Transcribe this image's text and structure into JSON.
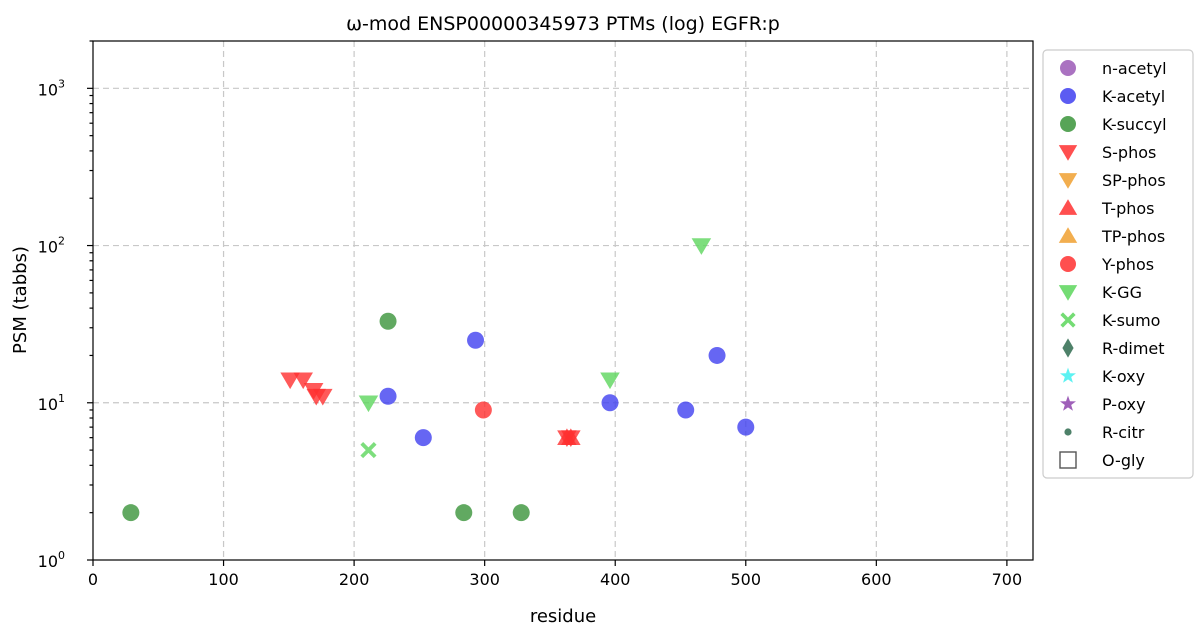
{
  "chart_data": {
    "type": "scatter",
    "title": "ω-mod ENSP00000345973 PTMs (log) EGFR:p",
    "xlabel": "residue",
    "ylabel": "PSM (tabbs)",
    "xlim": [
      0,
      720
    ],
    "ylim": [
      1,
      2000
    ],
    "yscale": "log",
    "grid": true,
    "legend_position": "outside-right",
    "x_ticks": [
      {
        "value": 0,
        "label": "0"
      },
      {
        "value": 100,
        "label": "100"
      },
      {
        "value": 200,
        "label": "200"
      },
      {
        "value": 300,
        "label": "300"
      },
      {
        "value": 400,
        "label": "400"
      },
      {
        "value": 500,
        "label": "500"
      },
      {
        "value": 600,
        "label": "600"
      },
      {
        "value": 700,
        "label": "700"
      }
    ],
    "y_ticks": [
      {
        "value": 1,
        "base": "10",
        "exp": "0"
      },
      {
        "value": 10,
        "base": "10",
        "exp": "1"
      },
      {
        "value": 100,
        "base": "10",
        "exp": "2"
      },
      {
        "value": 1000,
        "base": "10",
        "exp": "3"
      }
    ],
    "series": [
      {
        "name": "n-acetyl",
        "marker": "circle",
        "color": "#9b59b6",
        "points": []
      },
      {
        "name": "K-acetyl",
        "marker": "circle",
        "color": "#4040f0",
        "points": [
          [
            226,
            11
          ],
          [
            253,
            6
          ],
          [
            293,
            25
          ],
          [
            396,
            10
          ],
          [
            454,
            9
          ],
          [
            478,
            20
          ],
          [
            500,
            7
          ]
        ]
      },
      {
        "name": "K-succyl",
        "marker": "circle",
        "color": "#3a943a",
        "points": [
          [
            29,
            2
          ],
          [
            226,
            33
          ],
          [
            284,
            2
          ],
          [
            328,
            2
          ]
        ]
      },
      {
        "name": "S-phos",
        "marker": "triangle-down",
        "color": "#ff3030",
        "points": [
          [
            151,
            14
          ],
          [
            161,
            14
          ],
          [
            169,
            12
          ],
          [
            171,
            11
          ],
          [
            176,
            11
          ],
          [
            363,
            6
          ],
          [
            366,
            6
          ]
        ]
      },
      {
        "name": "SP-phos",
        "marker": "triangle-down",
        "color": "#f0a030",
        "points": []
      },
      {
        "name": "T-phos",
        "marker": "triangle-up",
        "color": "#ff3030",
        "points": [
          [
            363,
            6
          ],
          [
            366,
            6
          ]
        ]
      },
      {
        "name": "TP-phos",
        "marker": "triangle-up",
        "color": "#f0a030",
        "points": []
      },
      {
        "name": "Y-phos",
        "marker": "circle",
        "color": "#ff3030",
        "points": [
          [
            299,
            9
          ]
        ]
      },
      {
        "name": "K-GG",
        "marker": "triangle-down",
        "color": "#5cd65c",
        "points": [
          [
            211,
            10
          ],
          [
            396,
            14
          ],
          [
            466,
            100
          ]
        ]
      },
      {
        "name": "K-sumo",
        "marker": "x",
        "color": "#5cd65c",
        "points": [
          [
            211,
            5
          ]
        ]
      },
      {
        "name": "R-dimet",
        "marker": "diamond",
        "color": "#2f6b4f",
        "points": []
      },
      {
        "name": "K-oxy",
        "marker": "star",
        "color": "#40f0f0",
        "points": []
      },
      {
        "name": "P-oxy",
        "marker": "star",
        "color": "#8e44ad",
        "points": []
      },
      {
        "name": "R-citr",
        "marker": "dot",
        "color": "#2f6b4f",
        "points": []
      },
      {
        "name": "O-gly",
        "marker": "square-open",
        "color": "#555555",
        "points": []
      }
    ]
  }
}
